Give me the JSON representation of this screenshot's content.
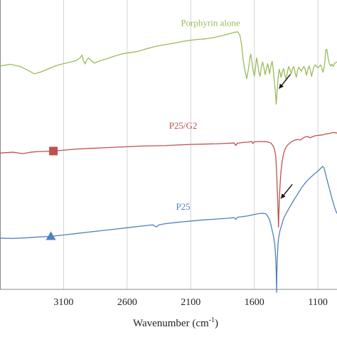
{
  "chart_data": {
    "type": "line",
    "title": "",
    "xlabel": "Wavenumber (cm",
    "xlabel_sup": "-1",
    "xlabel_close": ")",
    "ylabel": "",
    "x_reversed": true,
    "xlim": [
      3600,
      950
    ],
    "ylim": [
      0,
      1
    ],
    "grid": "vertical",
    "x_ticks": [
      3100,
      2600,
      2100,
      1600,
      1100
    ],
    "series": [
      {
        "name": "Porphyrin alone",
        "color": "#9bbb59",
        "points": [
          [
            3600,
            0.772
          ],
          [
            3520,
            0.778
          ],
          [
            3440,
            0.77
          ],
          [
            3380,
            0.757
          ],
          [
            3330,
            0.745
          ],
          [
            3280,
            0.751
          ],
          [
            3220,
            0.762
          ],
          [
            3160,
            0.773
          ],
          [
            3100,
            0.78
          ],
          [
            3040,
            0.786
          ],
          [
            3000,
            0.791
          ],
          [
            2968,
            0.801
          ],
          [
            2955,
            0.81
          ],
          [
            2945,
            0.792
          ],
          [
            2930,
            0.779
          ],
          [
            2918,
            0.793
          ],
          [
            2905,
            0.8
          ],
          [
            2880,
            0.79
          ],
          [
            2860,
            0.782
          ],
          [
            2820,
            0.789
          ],
          [
            2760,
            0.797
          ],
          [
            2700,
            0.806
          ],
          [
            2640,
            0.814
          ],
          [
            2580,
            0.818
          ],
          [
            2520,
            0.822
          ],
          [
            2460,
            0.83
          ],
          [
            2400,
            0.837
          ],
          [
            2340,
            0.843
          ],
          [
            2280,
            0.847
          ],
          [
            2220,
            0.852
          ],
          [
            2160,
            0.857
          ],
          [
            2100,
            0.861
          ],
          [
            2040,
            0.864
          ],
          [
            1980,
            0.866
          ],
          [
            1920,
            0.87
          ],
          [
            1860,
            0.876
          ],
          [
            1800,
            0.883
          ],
          [
            1760,
            0.888
          ],
          [
            1730,
            0.89
          ],
          [
            1712,
            0.876
          ],
          [
            1700,
            0.845
          ],
          [
            1690,
            0.8
          ],
          [
            1680,
            0.77
          ],
          [
            1670,
            0.748
          ],
          [
            1660,
            0.728
          ],
          [
            1650,
            0.752
          ],
          [
            1642,
            0.775
          ],
          [
            1635,
            0.8
          ],
          [
            1628,
            0.813
          ],
          [
            1620,
            0.79
          ],
          [
            1610,
            0.757
          ],
          [
            1600,
            0.737
          ],
          [
            1590,
            0.769
          ],
          [
            1583,
            0.8
          ],
          [
            1575,
            0.784
          ],
          [
            1565,
            0.752
          ],
          [
            1555,
            0.736
          ],
          [
            1545,
            0.768
          ],
          [
            1535,
            0.786
          ],
          [
            1525,
            0.767
          ],
          [
            1515,
            0.742
          ],
          [
            1505,
            0.761
          ],
          [
            1495,
            0.78
          ],
          [
            1488,
            0.765
          ],
          [
            1480,
            0.745
          ],
          [
            1470,
            0.772
          ],
          [
            1460,
            0.788
          ],
          [
            1452,
            0.762
          ],
          [
            1445,
            0.73
          ],
          [
            1438,
            0.7
          ],
          [
            1432,
            0.665
          ],
          [
            1428,
            0.64
          ],
          [
            1424,
            0.665
          ],
          [
            1418,
            0.7
          ],
          [
            1412,
            0.735
          ],
          [
            1405,
            0.76
          ],
          [
            1398,
            0.75
          ],
          [
            1390,
            0.733
          ],
          [
            1380,
            0.752
          ],
          [
            1370,
            0.763
          ],
          [
            1360,
            0.741
          ],
          [
            1350,
            0.726
          ],
          [
            1340,
            0.75
          ],
          [
            1330,
            0.77
          ],
          [
            1320,
            0.761
          ],
          [
            1310,
            0.745
          ],
          [
            1300,
            0.763
          ],
          [
            1290,
            0.77
          ],
          [
            1280,
            0.75
          ],
          [
            1270,
            0.733
          ],
          [
            1260,
            0.756
          ],
          [
            1250,
            0.768
          ],
          [
            1240,
            0.76
          ],
          [
            1230,
            0.754
          ],
          [
            1220,
            0.765
          ],
          [
            1210,
            0.77
          ],
          [
            1200,
            0.76
          ],
          [
            1190,
            0.74
          ],
          [
            1180,
            0.758
          ],
          [
            1170,
            0.772
          ],
          [
            1160,
            0.758
          ],
          [
            1150,
            0.736
          ],
          [
            1140,
            0.755
          ],
          [
            1130,
            0.77
          ],
          [
            1120,
            0.776
          ],
          [
            1110,
            0.77
          ],
          [
            1100,
            0.766
          ],
          [
            1090,
            0.77
          ],
          [
            1080,
            0.776
          ],
          [
            1070,
            0.766
          ],
          [
            1060,
            0.75
          ],
          [
            1052,
            0.765
          ],
          [
            1045,
            0.79
          ],
          [
            1038,
            0.828
          ],
          [
            1030,
            0.829
          ],
          [
            1020,
            0.8
          ],
          [
            1010,
            0.78
          ],
          [
            1000,
            0.772
          ],
          [
            990,
            0.778
          ],
          [
            980,
            0.77
          ],
          [
            970,
            0.78
          ],
          [
            960,
            0.784
          ],
          [
            950,
            0.786
          ]
        ]
      },
      {
        "name": "P25/G2",
        "color": "#c0504d",
        "marker": "square",
        "marker_x": 3180,
        "points": [
          [
            3600,
            0.471
          ],
          [
            3500,
            0.474
          ],
          [
            3420,
            0.469
          ],
          [
            3360,
            0.474
          ],
          [
            3300,
            0.476
          ],
          [
            3240,
            0.477
          ],
          [
            3180,
            0.478
          ],
          [
            3100,
            0.481
          ],
          [
            3000,
            0.485
          ],
          [
            2900,
            0.487
          ],
          [
            2800,
            0.489
          ],
          [
            2700,
            0.491
          ],
          [
            2600,
            0.493
          ],
          [
            2500,
            0.495
          ],
          [
            2400,
            0.496
          ],
          [
            2300,
            0.497
          ],
          [
            2200,
            0.499
          ],
          [
            2100,
            0.501
          ],
          [
            2000,
            0.502
          ],
          [
            1900,
            0.503
          ],
          [
            1800,
            0.505
          ],
          [
            1760,
            0.506
          ],
          [
            1745,
            0.497
          ],
          [
            1735,
            0.505
          ],
          [
            1700,
            0.507
          ],
          [
            1650,
            0.509
          ],
          [
            1620,
            0.511
          ],
          [
            1612,
            0.504
          ],
          [
            1600,
            0.51
          ],
          [
            1550,
            0.511
          ],
          [
            1500,
            0.51
          ],
          [
            1470,
            0.506
          ],
          [
            1450,
            0.494
          ],
          [
            1440,
            0.481
          ],
          [
            1432,
            0.46
          ],
          [
            1426,
            0.42
          ],
          [
            1420,
            0.345
          ],
          [
            1416,
            0.307
          ],
          [
            1413,
            0.26
          ],
          [
            1410,
            0.215
          ],
          [
            1407,
            0.262
          ],
          [
            1403,
            0.315
          ],
          [
            1398,
            0.36
          ],
          [
            1390,
            0.41
          ],
          [
            1380,
            0.445
          ],
          [
            1370,
            0.47
          ],
          [
            1355,
            0.488
          ],
          [
            1340,
            0.498
          ],
          [
            1320,
            0.506
          ],
          [
            1300,
            0.512
          ],
          [
            1280,
            0.516
          ],
          [
            1260,
            0.518
          ],
          [
            1240,
            0.516
          ],
          [
            1220,
            0.522
          ],
          [
            1200,
            0.527
          ],
          [
            1180,
            0.528
          ],
          [
            1160,
            0.524
          ],
          [
            1140,
            0.528
          ],
          [
            1120,
            0.531
          ],
          [
            1100,
            0.532
          ],
          [
            1080,
            0.533
          ],
          [
            1060,
            0.534
          ],
          [
            1040,
            0.537
          ],
          [
            1020,
            0.538
          ],
          [
            1000,
            0.54
          ],
          [
            980,
            0.542
          ],
          [
            960,
            0.541
          ],
          [
            950,
            0.54
          ]
        ]
      },
      {
        "name": "P25",
        "color": "#4f81bd",
        "marker": "triangle",
        "marker_x": 3200,
        "points": [
          [
            3600,
            0.177
          ],
          [
            3500,
            0.176
          ],
          [
            3400,
            0.178
          ],
          [
            3300,
            0.181
          ],
          [
            3200,
            0.183
          ],
          [
            3100,
            0.188
          ],
          [
            3000,
            0.193
          ],
          [
            2900,
            0.198
          ],
          [
            2800,
            0.203
          ],
          [
            2700,
            0.208
          ],
          [
            2600,
            0.213
          ],
          [
            2500,
            0.218
          ],
          [
            2400,
            0.223
          ],
          [
            2370,
            0.216
          ],
          [
            2350,
            0.223
          ],
          [
            2300,
            0.227
          ],
          [
            2200,
            0.232
          ],
          [
            2100,
            0.236
          ],
          [
            2000,
            0.24
          ],
          [
            1900,
            0.243
          ],
          [
            1800,
            0.246
          ],
          [
            1760,
            0.248
          ],
          [
            1745,
            0.242
          ],
          [
            1735,
            0.249
          ],
          [
            1700,
            0.251
          ],
          [
            1650,
            0.254
          ],
          [
            1620,
            0.257
          ],
          [
            1600,
            0.259
          ],
          [
            1560,
            0.262
          ],
          [
            1530,
            0.263
          ],
          [
            1510,
            0.261
          ],
          [
            1495,
            0.253
          ],
          [
            1480,
            0.24
          ],
          [
            1468,
            0.22
          ],
          [
            1458,
            0.2
          ],
          [
            1450,
            0.185
          ],
          [
            1445,
            0.172
          ],
          [
            1440,
            0.158
          ],
          [
            1435,
            0.13
          ],
          [
            1430,
            0.09
          ],
          [
            1427,
            0.04
          ],
          [
            1425,
            -0.01
          ],
          [
            1423,
            0.05
          ],
          [
            1420,
            0.1
          ],
          [
            1415,
            0.148
          ],
          [
            1410,
            0.175
          ],
          [
            1400,
            0.2
          ],
          [
            1390,
            0.215
          ],
          [
            1380,
            0.23
          ],
          [
            1370,
            0.245
          ],
          [
            1350,
            0.262
          ],
          [
            1330,
            0.278
          ],
          [
            1310,
            0.293
          ],
          [
            1290,
            0.308
          ],
          [
            1270,
            0.322
          ],
          [
            1250,
            0.336
          ],
          [
            1230,
            0.35
          ],
          [
            1210,
            0.362
          ],
          [
            1190,
            0.373
          ],
          [
            1170,
            0.382
          ],
          [
            1150,
            0.39
          ],
          [
            1130,
            0.398
          ],
          [
            1110,
            0.405
          ],
          [
            1090,
            0.413
          ],
          [
            1075,
            0.42
          ],
          [
            1062,
            0.425
          ],
          [
            1052,
            0.42
          ],
          [
            1045,
            0.408
          ],
          [
            1035,
            0.39
          ],
          [
            1020,
            0.365
          ],
          [
            1005,
            0.34
          ],
          [
            990,
            0.315
          ],
          [
            975,
            0.292
          ],
          [
            960,
            0.272
          ],
          [
            950,
            0.262
          ]
        ]
      }
    ],
    "annotations": [
      {
        "type": "arrow",
        "target_series": "Porphyrin alone",
        "target_x": 1428
      },
      {
        "type": "arrow",
        "target_series": "P25/G2",
        "target_x": 1413
      }
    ]
  }
}
